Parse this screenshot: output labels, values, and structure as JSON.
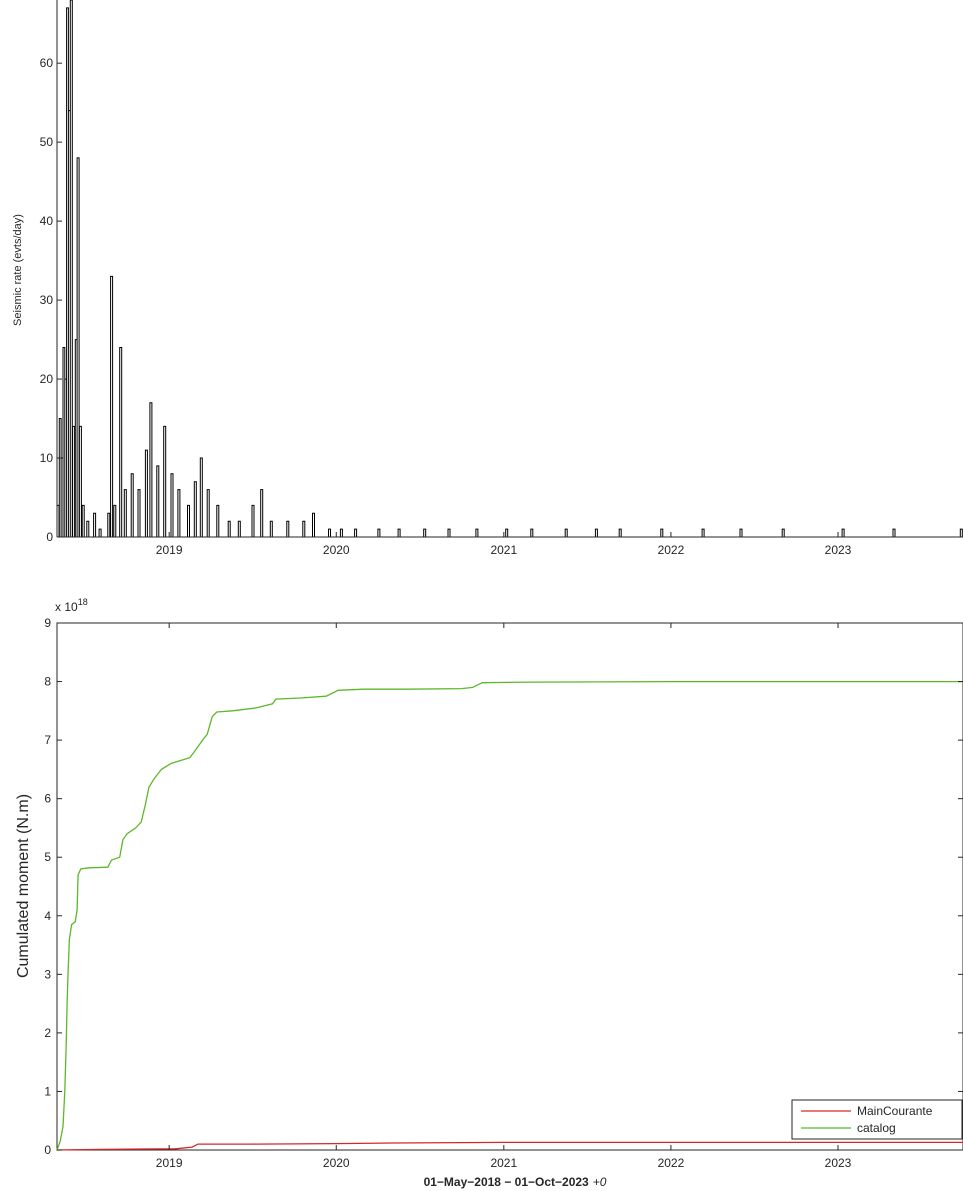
{
  "chart_data": [
    {
      "type": "line",
      "style": "stairs",
      "ylabel": "Seismic rate (evts/day)",
      "xlabel": "",
      "x_ticks": [
        "2019",
        "2020",
        "2021",
        "2022",
        "2023"
      ],
      "y_ticks": [
        "0",
        "10",
        "20",
        "30",
        "40",
        "50",
        "60"
      ],
      "xlim": [
        "2018-05-01",
        "2023-10-01"
      ],
      "ylim": [
        0,
        68
      ],
      "grid": false,
      "colors": {
        "line": "#000000",
        "axis": "#262626"
      },
      "series": [
        {
          "points": [
            [
              "2018-05-01",
              4
            ],
            [
              "2018-05-06",
              15
            ],
            [
              "2018-05-10",
              10
            ],
            [
              "2018-05-14",
              24
            ],
            [
              "2018-05-18",
              20
            ],
            [
              "2018-05-22",
              67
            ],
            [
              "2018-05-26",
              54
            ],
            [
              "2018-05-30",
              68
            ],
            [
              "2018-06-04",
              14
            ],
            [
              "2018-06-10",
              25
            ],
            [
              "2018-06-14",
              48
            ],
            [
              "2018-06-19",
              14
            ],
            [
              "2018-06-25",
              4
            ],
            [
              "2018-07-05",
              2
            ],
            [
              "2018-07-20",
              3
            ],
            [
              "2018-08-01",
              1
            ],
            [
              "2018-08-20",
              3
            ],
            [
              "2018-08-26",
              33
            ],
            [
              "2018-09-02",
              4
            ],
            [
              "2018-09-15",
              24
            ],
            [
              "2018-09-25",
              6
            ],
            [
              "2018-10-10",
              8
            ],
            [
              "2018-10-25",
              6
            ],
            [
              "2018-11-10",
              11
            ],
            [
              "2018-11-20",
              17
            ],
            [
              "2018-12-05",
              9
            ],
            [
              "2018-12-20",
              14
            ],
            [
              "2019-01-05",
              8
            ],
            [
              "2019-01-20",
              6
            ],
            [
              "2019-02-10",
              4
            ],
            [
              "2019-02-25",
              7
            ],
            [
              "2019-03-10",
              10
            ],
            [
              "2019-03-25",
              6
            ],
            [
              "2019-04-15",
              4
            ],
            [
              "2019-05-10",
              2
            ],
            [
              "2019-06-01",
              2
            ],
            [
              "2019-07-01",
              4
            ],
            [
              "2019-07-20",
              6
            ],
            [
              "2019-08-10",
              2
            ],
            [
              "2019-09-15",
              2
            ],
            [
              "2019-10-20",
              2
            ],
            [
              "2019-11-10",
              3
            ],
            [
              "2019-12-15",
              1
            ],
            [
              "2020-01-10",
              1
            ],
            [
              "2020-02-10",
              1
            ],
            [
              "2020-04-01",
              1
            ],
            [
              "2020-05-15",
              1
            ],
            [
              "2020-07-10",
              1
            ],
            [
              "2020-09-01",
              1
            ],
            [
              "2020-11-01",
              1
            ],
            [
              "2021-01-05",
              1
            ],
            [
              "2021-03-01",
              1
            ],
            [
              "2021-05-15",
              1
            ],
            [
              "2021-07-20",
              1
            ],
            [
              "2021-09-10",
              1
            ],
            [
              "2021-12-10",
              1
            ],
            [
              "2022-03-10",
              1
            ],
            [
              "2022-06-01",
              1
            ],
            [
              "2022-09-01",
              1
            ],
            [
              "2023-01-10",
              1
            ],
            [
              "2023-05-01",
              1
            ],
            [
              "2023-09-25",
              1
            ]
          ]
        }
      ]
    },
    {
      "type": "line",
      "ylabel": "Cumulated moment (N.m)",
      "y_exponent_label": "x 10",
      "y_exponent": "18",
      "x_ticks": [
        "2019",
        "2020",
        "2021",
        "2022",
        "2023"
      ],
      "y_ticks": [
        "0",
        "1",
        "2",
        "3",
        "4",
        "5",
        "6",
        "7",
        "8",
        "9"
      ],
      "xlim": [
        "2018-05-01",
        "2023-10-01"
      ],
      "ylim": [
        0,
        9
      ],
      "grid": false,
      "legend_position": "bottom-right",
      "xlabel_main": "01−May−2018 − 01−Oct−2023",
      "xlabel_suffix": "+0",
      "series": [
        {
          "name": "MainCourante",
          "color": "#d62728",
          "points": [
            [
              "2018-05-01",
              0
            ],
            [
              "2018-08-01",
              0.01
            ],
            [
              "2019-01-15",
              0.02
            ],
            [
              "2019-02-20",
              0.05
            ],
            [
              "2019-03-05",
              0.1
            ],
            [
              "2019-07-01",
              0.1
            ],
            [
              "2020-01-01",
              0.11
            ],
            [
              "2020-05-01",
              0.12
            ],
            [
              "2021-01-01",
              0.13
            ],
            [
              "2022-01-01",
              0.13
            ],
            [
              "2023-10-01",
              0.13
            ]
          ]
        },
        {
          "name": "catalog",
          "color": "#5cb82a",
          "points": [
            [
              "2018-05-01",
              0
            ],
            [
              "2018-05-08",
              0.15
            ],
            [
              "2018-05-14",
              0.4
            ],
            [
              "2018-05-18",
              1.0
            ],
            [
              "2018-05-21",
              1.8
            ],
            [
              "2018-05-23",
              2.5
            ],
            [
              "2018-05-25",
              3.0
            ],
            [
              "2018-05-28",
              3.6
            ],
            [
              "2018-06-02",
              3.85
            ],
            [
              "2018-06-10",
              3.9
            ],
            [
              "2018-06-14",
              4.1
            ],
            [
              "2018-06-16",
              4.7
            ],
            [
              "2018-06-22",
              4.8
            ],
            [
              "2018-07-10",
              4.82
            ],
            [
              "2018-08-20",
              4.83
            ],
            [
              "2018-08-28",
              4.95
            ],
            [
              "2018-09-15",
              5.0
            ],
            [
              "2018-09-22",
              5.3
            ],
            [
              "2018-10-01",
              5.4
            ],
            [
              "2018-10-20",
              5.5
            ],
            [
              "2018-11-01",
              5.6
            ],
            [
              "2018-11-10",
              5.9
            ],
            [
              "2018-11-18",
              6.2
            ],
            [
              "2018-11-30",
              6.35
            ],
            [
              "2018-12-15",
              6.5
            ],
            [
              "2019-01-05",
              6.6
            ],
            [
              "2019-01-25",
              6.65
            ],
            [
              "2019-02-15",
              6.7
            ],
            [
              "2019-02-25",
              6.8
            ],
            [
              "2019-03-15",
              7.0
            ],
            [
              "2019-03-25",
              7.1
            ],
            [
              "2019-04-05",
              7.4
            ],
            [
              "2019-04-15",
              7.48
            ],
            [
              "2019-05-20",
              7.5
            ],
            [
              "2019-07-10",
              7.55
            ],
            [
              "2019-08-15",
              7.62
            ],
            [
              "2019-08-22",
              7.7
            ],
            [
              "2019-10-15",
              7.72
            ],
            [
              "2019-12-10",
              7.75
            ],
            [
              "2020-01-05",
              7.85
            ],
            [
              "2020-03-01",
              7.87
            ],
            [
              "2020-06-01",
              7.87
            ],
            [
              "2020-10-01",
              7.88
            ],
            [
              "2020-10-25",
              7.9
            ],
            [
              "2020-11-15",
              7.98
            ],
            [
              "2021-03-01",
              7.99
            ],
            [
              "2022-01-01",
              8.0
            ],
            [
              "2023-10-01",
              8.0
            ]
          ]
        }
      ]
    }
  ]
}
